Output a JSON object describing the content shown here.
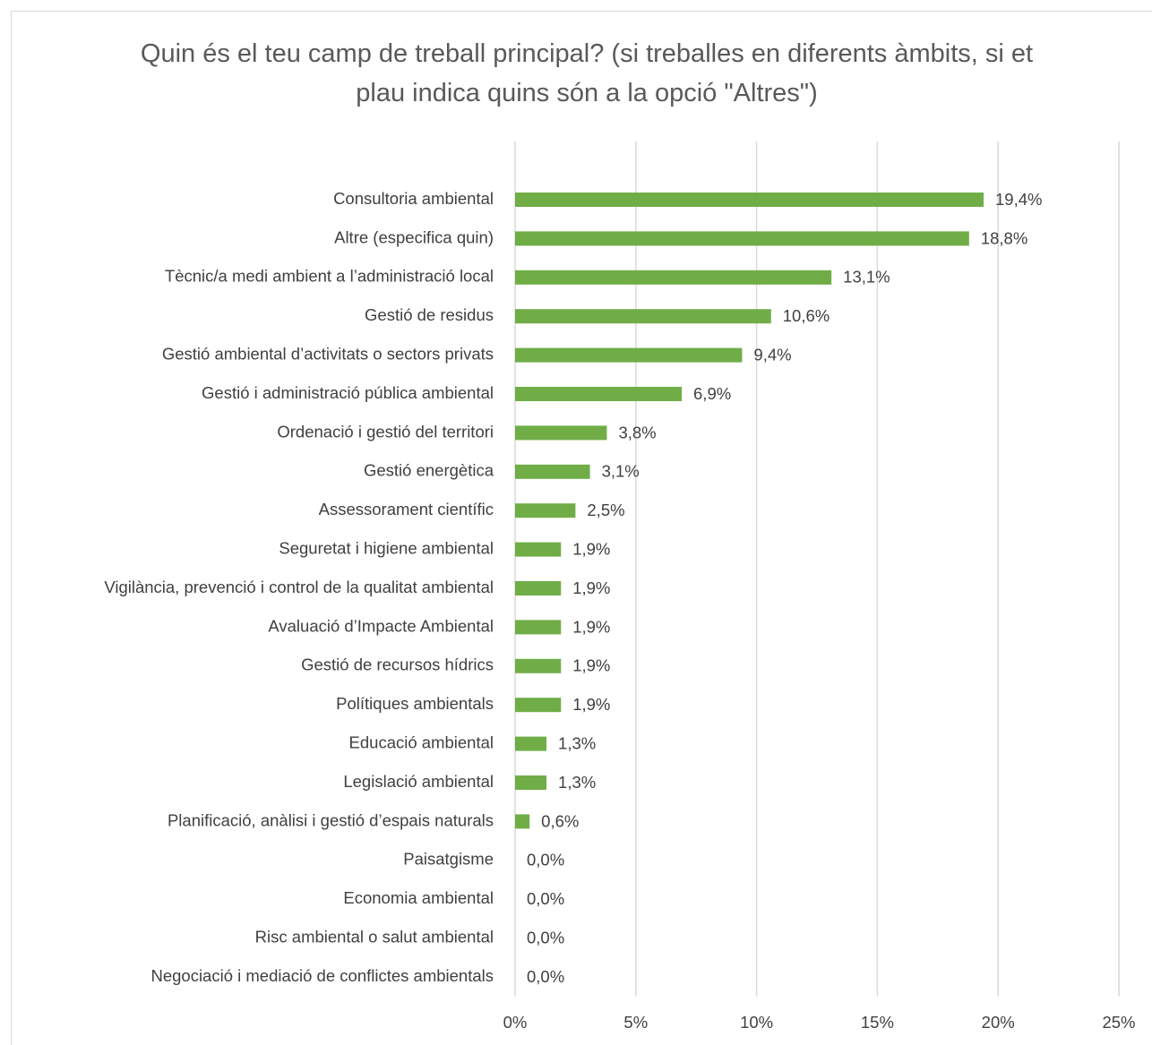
{
  "chart_data": {
    "type": "bar",
    "orientation": "horizontal",
    "title": "Quin és el teu camp de treball principal? (si treballes en diferents àmbits, si et plau indica quins són a la opció \"Altres\")",
    "categories": [
      "Consultoria ambiental",
      "Altre (especifica quin)",
      "Tècnic/a medi ambient a l’administració local",
      "Gestió de residus",
      "Gestió ambiental d’activitats o sectors privats",
      "Gestió i administració pública ambiental",
      "Ordenació i gestió del territori",
      "Gestió energètica",
      "Assessorament científic",
      "Seguretat i higiene ambiental",
      "Vigilància, prevenció i control de la qualitat ambiental",
      "Avaluació d’Impacte Ambiental",
      "Gestió de recursos hídrics",
      "Polítiques ambientals",
      "Educació ambiental",
      "Legislació ambiental",
      "Planificació, anàlisi i gestió d’espais naturals",
      "Paisatgisme",
      "Economia ambiental",
      "Risc ambiental o salut ambiental",
      "Negociació i mediació de conflictes ambientals"
    ],
    "values": [
      19.4,
      18.8,
      13.1,
      10.6,
      9.4,
      6.9,
      3.8,
      3.1,
      2.5,
      1.9,
      1.9,
      1.9,
      1.9,
      1.9,
      1.3,
      1.3,
      0.6,
      0,
      0,
      0,
      0
    ],
    "value_labels": [
      "19,4%",
      "18,8%",
      "13,1%",
      "10,6%",
      "9,4%",
      "6,9%",
      "3,8%",
      "3,1%",
      "2,5%",
      "1,9%",
      "1,9%",
      "1,9%",
      "1,9%",
      "1,9%",
      "1,3%",
      "1,3%",
      "0,6%",
      "0,0%",
      "0,0%",
      "0,0%",
      "0,0%"
    ],
    "color": "#70ad47",
    "xlim": [
      0,
      25
    ],
    "xticks": [
      {
        "value": 0,
        "label": "0%"
      },
      {
        "value": 5,
        "label": "5%"
      },
      {
        "value": 10,
        "label": "10%"
      },
      {
        "value": 15,
        "label": "15%"
      },
      {
        "value": 20,
        "label": "20%"
      },
      {
        "value": 25,
        "label": "25%"
      }
    ],
    "grid": true
  }
}
